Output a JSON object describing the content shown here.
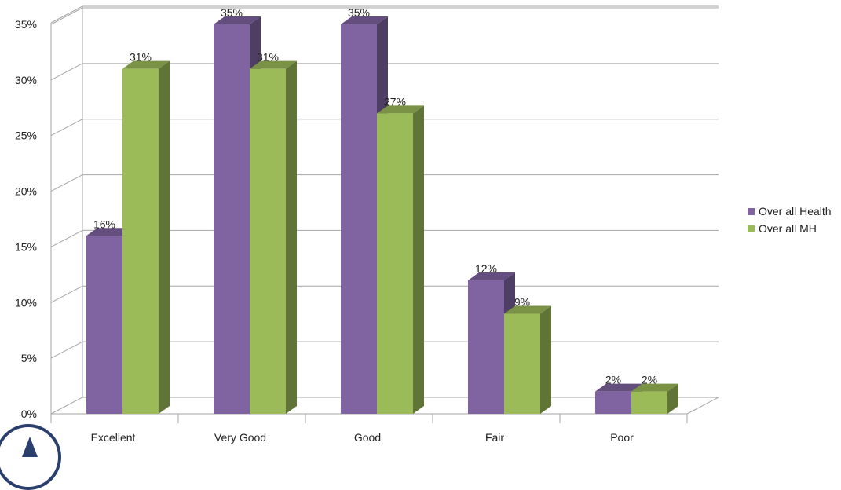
{
  "chart_data": {
    "type": "bar",
    "categories": [
      "Excellent",
      "Very Good",
      "Good",
      "Fair",
      "Poor"
    ],
    "series": [
      {
        "name": "Over all Health",
        "values": [
          16,
          35,
          35,
          12,
          2
        ],
        "labels": [
          "16%",
          "35%",
          "35%",
          "12%",
          "2%"
        ],
        "color": "#8064a2"
      },
      {
        "name": "Over all MH",
        "values": [
          31,
          31,
          27,
          9,
          2
        ],
        "labels": [
          "31%",
          "31%",
          "27%",
          "9%",
          "2%"
        ],
        "color": "#9bbb59"
      }
    ],
    "ylim": [
      0,
      35
    ],
    "yticks": [
      "0%",
      "5%",
      "10%",
      "15%",
      "20%",
      "25%",
      "30%",
      "35%"
    ],
    "grid": true,
    "legend_position": "right",
    "style": "3d-clustered-column"
  }
}
